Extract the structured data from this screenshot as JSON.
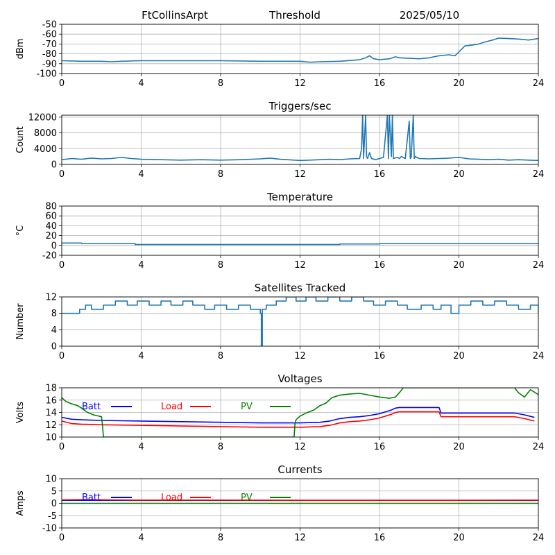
{
  "header": {
    "station": "FtCollinsArpt",
    "mode": "Threshold",
    "date": "2025/05/10"
  },
  "colors": {
    "series": "#1f77b4",
    "grid": "#b0b0b0",
    "batt": "#0000ff",
    "load": "#ff0000",
    "pv": "#008000"
  },
  "chart_data": [
    {
      "type": "line",
      "title": "",
      "ylabel": "dBm",
      "xlim": [
        0,
        24
      ],
      "xticks": [
        0,
        4,
        8,
        12,
        16,
        20,
        24
      ],
      "ylim": [
        -100,
        -50
      ],
      "yticks": [
        -100,
        -90,
        -80,
        -70,
        -60,
        -50
      ],
      "grid": true,
      "series": [
        {
          "style": "line",
          "color": "#1f77b4",
          "x": [
            0,
            1,
            2,
            2.5,
            3,
            4,
            6,
            8,
            10,
            11,
            12,
            12.5,
            13,
            14,
            15,
            15.3,
            15.5,
            15.7,
            16,
            16.5,
            16.8,
            17,
            18,
            18.5,
            19,
            19.5,
            19.8,
            20,
            20.3,
            20.7,
            21,
            21.3,
            21.7,
            22,
            22.5,
            23,
            23.5,
            24
          ],
          "y": [
            -87,
            -87.5,
            -87.5,
            -88,
            -87.5,
            -87,
            -87,
            -87,
            -87.5,
            -87.5,
            -87.5,
            -88.5,
            -88,
            -87.5,
            -86,
            -84,
            -82,
            -85,
            -86,
            -85,
            -83,
            -84,
            -85,
            -84,
            -82,
            -81,
            -82,
            -78,
            -72,
            -71,
            -70,
            -68,
            -66,
            -64,
            -64.5,
            -65,
            -66,
            -64.5
          ]
        }
      ]
    },
    {
      "type": "line",
      "title": "Triggers/sec",
      "ylabel": "Count",
      "xlim": [
        0,
        24
      ],
      "xticks": [
        0,
        4,
        8,
        12,
        16,
        20,
        24
      ],
      "ylim": [
        0,
        12500
      ],
      "yticks": [
        0,
        4000,
        8000,
        12000
      ],
      "grid": true,
      "series": [
        {
          "style": "line",
          "color": "#1f77b4",
          "x": [
            0,
            0.5,
            1,
            1.5,
            2,
            2.5,
            3,
            3.5,
            4,
            5,
            6,
            7,
            8,
            9,
            10,
            10.5,
            11,
            12,
            12.5,
            13,
            13.5,
            14,
            14.5,
            15,
            15.1,
            15.15,
            15.2,
            15.3,
            15.35,
            15.4,
            15.5,
            15.6,
            15.8,
            16,
            16.2,
            16.4,
            16.45,
            16.5,
            16.6,
            16.65,
            16.7,
            16.9,
            17,
            17.1,
            17.3,
            17.5,
            17.55,
            17.6,
            17.7,
            17.75,
            17.8,
            18,
            18.5,
            19,
            19.5,
            20,
            20.5,
            21,
            21.5,
            22,
            22.5,
            23,
            23.5,
            24
          ],
          "y": [
            1200,
            1500,
            1300,
            1600,
            1400,
            1500,
            1800,
            1500,
            1300,
            1200,
            1100,
            1200,
            1100,
            1200,
            1400,
            1600,
            1300,
            1000,
            1100,
            1200,
            1300,
            1200,
            1400,
            1500,
            4000,
            12500,
            1500,
            12500,
            2000,
            1500,
            3000,
            1500,
            1200,
            1500,
            1800,
            12500,
            1500,
            12500,
            2000,
            12500,
            1500,
            1800,
            1500,
            2000,
            1500,
            11000,
            1500,
            1800,
            12500,
            1500,
            2000,
            1500,
            1400,
            1500,
            1600,
            1800,
            1400,
            1300,
            1200,
            1300,
            1100,
            1200,
            1100,
            1000
          ]
        }
      ]
    },
    {
      "type": "line",
      "title": "Temperature",
      "ylabel": "°C",
      "xlim": [
        0,
        24
      ],
      "xticks": [
        0,
        4,
        8,
        12,
        16,
        20,
        24
      ],
      "ylim": [
        -20,
        80
      ],
      "yticks": [
        -20,
        0,
        20,
        40,
        60,
        80
      ],
      "grid": true,
      "series": [
        {
          "style": "step",
          "color": "#1f77b4",
          "x": [
            0,
            1,
            3.7,
            14,
            16,
            24
          ],
          "y": [
            5,
            4,
            2,
            3,
            4,
            4
          ]
        }
      ]
    },
    {
      "type": "line",
      "title": "Satellites Tracked",
      "ylabel": "Number",
      "xlim": [
        0,
        24
      ],
      "xticks": [
        0,
        4,
        8,
        12,
        16,
        20,
        24
      ],
      "ylim": [
        0,
        12
      ],
      "yticks": [
        0,
        4,
        8,
        12
      ],
      "grid": true,
      "series": [
        {
          "style": "step",
          "color": "#1f77b4",
          "x": [
            0,
            0.9,
            1.2,
            1.5,
            2.1,
            2.7,
            3.3,
            3.8,
            4.4,
            5,
            5.5,
            6.1,
            6.6,
            7.2,
            7.7,
            8.3,
            8.9,
            9.5,
            10,
            10.05,
            10.1,
            10.3,
            10.8,
            11.3,
            11.8,
            12.3,
            12.8,
            13.4,
            14,
            14.6,
            15.2,
            15.7,
            16.3,
            16.9,
            17.4,
            18.1,
            18.7,
            19.1,
            19.6,
            20,
            20.6,
            21.2,
            21.8,
            22.4,
            23,
            23.6,
            24
          ],
          "y": [
            8,
            9,
            10,
            9,
            10,
            11,
            10,
            11,
            10,
            11,
            10,
            11,
            10,
            9,
            10,
            9,
            10,
            9,
            8,
            0,
            9,
            10,
            11,
            12,
            11,
            12,
            11,
            12,
            11,
            12,
            11,
            10,
            11,
            10,
            9,
            10,
            9,
            10,
            8,
            10,
            11,
            10,
            11,
            10,
            9,
            10,
            8
          ]
        }
      ]
    },
    {
      "type": "line",
      "title": "Voltages",
      "ylabel": "Volts",
      "xlim": [
        0,
        24
      ],
      "xticks": [
        0,
        4,
        8,
        12,
        16,
        20,
        24
      ],
      "ylim": [
        10,
        18
      ],
      "yticks": [
        10,
        12,
        14,
        16,
        18
      ],
      "grid": true,
      "legend": [
        "Batt",
        "Load",
        "PV"
      ],
      "series": [
        {
          "name": "Batt",
          "style": "line",
          "color": "#0000ff",
          "x": [
            0,
            0.5,
            1,
            2,
            4,
            8,
            10,
            12,
            13,
            13.5,
            14,
            14.5,
            15,
            15.5,
            16,
            16.3,
            16.6,
            16.8,
            17,
            18,
            19,
            19.1,
            20,
            22,
            22.8,
            23.3,
            23.8
          ],
          "y": [
            13.2,
            12.9,
            12.8,
            12.7,
            12.6,
            12.4,
            12.3,
            12.3,
            12.4,
            12.6,
            13.0,
            13.2,
            13.3,
            13.5,
            13.8,
            14.1,
            14.4,
            14.7,
            14.8,
            14.8,
            14.8,
            13.9,
            13.9,
            13.9,
            13.9,
            13.6,
            13.2
          ]
        },
        {
          "name": "Load",
          "style": "line",
          "color": "#ff0000",
          "x": [
            0,
            0.5,
            1,
            2,
            4,
            8,
            10,
            12,
            13,
            13.5,
            14,
            14.5,
            15,
            15.5,
            16,
            16.3,
            16.6,
            16.8,
            17,
            18,
            19,
            19.1,
            20,
            22,
            22.8,
            23.3,
            23.8
          ],
          "y": [
            12.6,
            12.2,
            12.1,
            12.0,
            11.9,
            11.7,
            11.6,
            11.6,
            11.7,
            11.9,
            12.3,
            12.5,
            12.6,
            12.8,
            13.1,
            13.4,
            13.7,
            14.0,
            14.1,
            14.1,
            14.1,
            13.3,
            13.3,
            13.3,
            13.3,
            13.0,
            12.6
          ]
        },
        {
          "name": "PV",
          "style": "line",
          "color": "#008000",
          "x": [
            0,
            0.2,
            0.5,
            0.8,
            1,
            1.3,
            1.6,
            2,
            2.05,
            2.1,
            11.7,
            11.75,
            11.8,
            12,
            12.3,
            12.7,
            13,
            13.3,
            13.6,
            14,
            14.5,
            15,
            15.5,
            16,
            16.5,
            16.8,
            17,
            17.2,
            22.8,
            23,
            23.3,
            23.6,
            24
          ],
          "y": [
            16.4,
            15.8,
            15.4,
            15.1,
            14.7,
            14.0,
            13.6,
            13.3,
            12.0,
            10.0,
            10.0,
            12.3,
            12.8,
            13.4,
            13.9,
            14.4,
            15.1,
            15.5,
            16.4,
            16.8,
            17.0,
            17.1,
            16.8,
            16.5,
            16.3,
            16.5,
            17.2,
            18.0,
            18.0,
            17.2,
            16.5,
            17.7,
            16.9
          ]
        }
      ]
    },
    {
      "type": "line",
      "title": "Currents",
      "ylabel": "Amps",
      "xlim": [
        0,
        24
      ],
      "xticks": [
        0,
        4,
        8,
        12,
        16,
        20,
        24
      ],
      "ylim": [
        -10,
        10
      ],
      "yticks": [
        -10,
        -5,
        0,
        5,
        10
      ],
      "grid": true,
      "legend": [
        "Batt",
        "Load",
        "PV"
      ],
      "series": [
        {
          "name": "Batt",
          "style": "line",
          "color": "#0000ff",
          "x": [
            0,
            24
          ],
          "y": [
            1.2,
            1.2
          ]
        },
        {
          "name": "Load",
          "style": "line",
          "color": "#ff0000",
          "x": [
            0,
            1,
            4,
            8,
            12,
            16,
            20,
            24
          ],
          "y": [
            1.4,
            1.5,
            1.3,
            1.3,
            1.2,
            1.2,
            1.2,
            1.3
          ]
        },
        {
          "name": "PV",
          "style": "line",
          "color": "#008000",
          "x": [
            0,
            24
          ],
          "y": [
            0,
            0
          ]
        }
      ]
    }
  ]
}
